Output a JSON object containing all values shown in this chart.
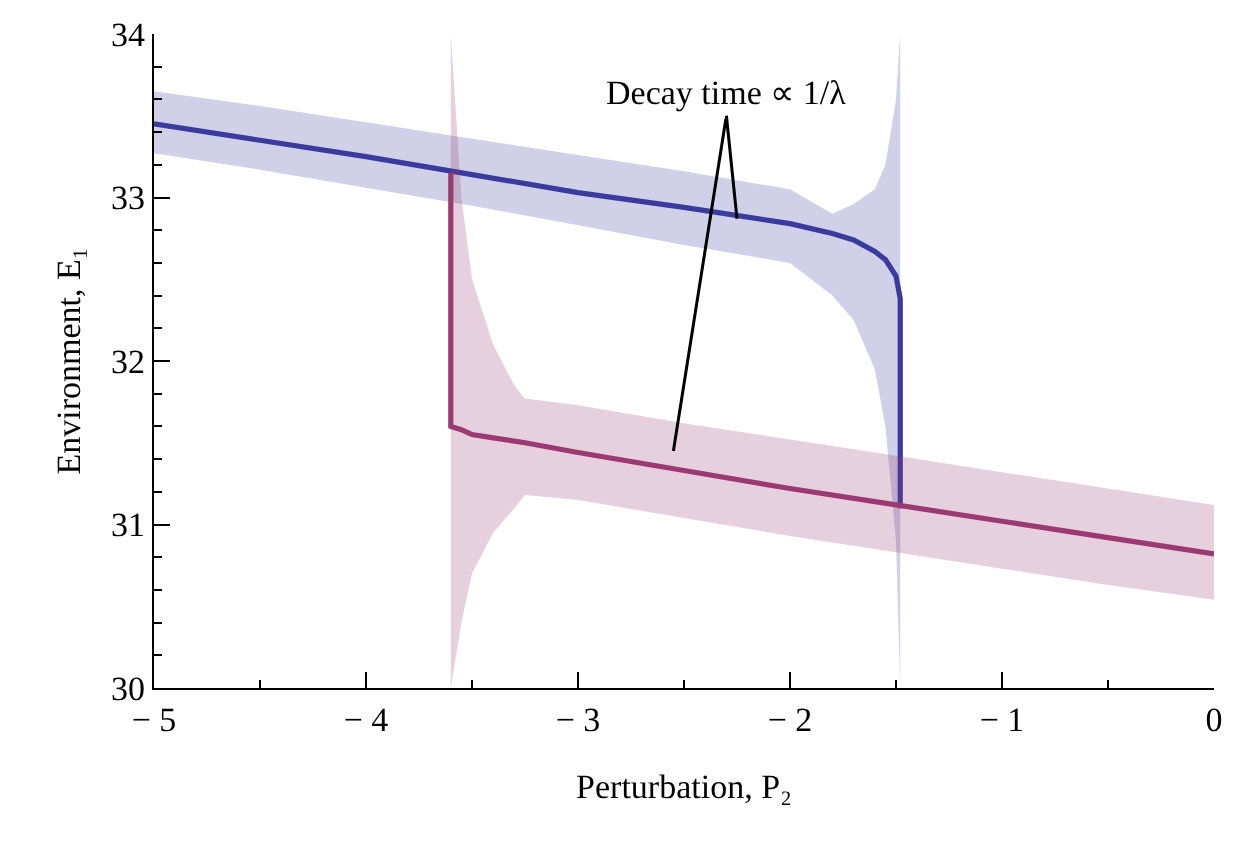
{
  "chart_data": {
    "type": "line",
    "xlabel": "Perturbation, P₂",
    "ylabel": "Environment, E₁",
    "xlim": [
      -5,
      0
    ],
    "ylim": [
      30,
      34
    ],
    "xticks": [
      {
        "value": -5,
        "label": "− 5"
      },
      {
        "value": -4,
        "label": "− 4"
      },
      {
        "value": -3,
        "label": "− 3"
      },
      {
        "value": -2,
        "label": "− 2"
      },
      {
        "value": -1,
        "label": "− 1"
      },
      0
    ],
    "yticks": [
      30,
      31,
      32,
      33,
      34
    ],
    "marker": "none",
    "line_style": "solid",
    "annotations": [
      {
        "text": "Decay time ∝ 1/λ",
        "x": -2.25,
        "y": 32.87
      }
    ],
    "series": [
      {
        "color": "#3b3b9e",
        "x": [
          -5,
          -4.5,
          -4,
          -3.5,
          -3,
          -2.5,
          -2,
          -1.8,
          -1.7,
          -1.6,
          -1.55,
          -1.5,
          -1.48,
          -1.48
        ],
        "values": [
          33.45,
          33.35,
          33.25,
          33.14,
          33.03,
          32.94,
          32.84,
          32.78,
          32.74,
          32.67,
          32.62,
          32.52,
          32.38,
          31.1
        ],
        "upper": [
          33.65,
          33.56,
          33.46,
          33.36,
          33.26,
          33.16,
          33.05,
          32.9,
          32.96,
          33.05,
          33.2,
          33.6,
          34,
          34
        ],
        "lower": [
          33.27,
          33.17,
          33.06,
          32.95,
          32.83,
          32.71,
          32.6,
          32.4,
          32.25,
          31.95,
          31.6,
          30.9,
          30,
          30
        ]
      },
      {
        "color": "#9b3a72",
        "x": [
          -3.6,
          -3.6,
          -3.55,
          -3.5,
          -3.4,
          -3.3,
          -3.25,
          -3,
          -2.5,
          -2,
          -1.5,
          -1,
          -0.5,
          0
        ],
        "values": [
          33.15,
          31.6,
          31.58,
          31.55,
          31.53,
          31.51,
          31.5,
          31.44,
          31.33,
          31.22,
          31.12,
          31.02,
          30.92,
          30.82
        ],
        "upper": [
          34,
          34,
          33.0,
          32.5,
          32.1,
          31.85,
          31.77,
          31.73,
          31.62,
          31.52,
          31.42,
          31.32,
          31.22,
          31.12
        ],
        "lower": [
          30,
          30,
          30.4,
          30.7,
          30.95,
          31.1,
          31.18,
          31.15,
          31.04,
          30.93,
          30.83,
          30.73,
          30.63,
          30.54
        ]
      }
    ]
  }
}
